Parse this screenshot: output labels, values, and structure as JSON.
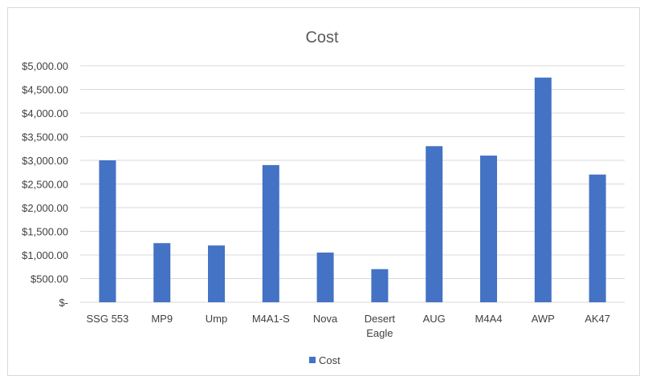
{
  "chart_data": {
    "type": "bar",
    "title": "Cost",
    "xlabel": "",
    "ylabel": "",
    "categories": [
      "SSG 553",
      "MP9",
      "Ump",
      "M4A1-S",
      "Nova",
      "Desert Eagle",
      "AUG",
      "M4A4",
      "AWP",
      "AK47"
    ],
    "category_lines": [
      [
        "SSG 553"
      ],
      [
        "MP9"
      ],
      [
        "Ump"
      ],
      [
        "M4A1-S"
      ],
      [
        "Nova"
      ],
      [
        "Desert",
        "Eagle"
      ],
      [
        "AUG"
      ],
      [
        "M4A4"
      ],
      [
        "AWP"
      ],
      [
        "AK47"
      ]
    ],
    "series": [
      {
        "name": "Cost",
        "values": [
          3000,
          1250,
          1200,
          2900,
          1050,
          700,
          3300,
          3100,
          4750,
          2700
        ],
        "color": "#4472C4"
      }
    ],
    "ylim": [
      0,
      5000
    ],
    "y_ticks": [
      0,
      500,
      1000,
      1500,
      2000,
      2500,
      3000,
      3500,
      4000,
      4500,
      5000
    ],
    "y_tick_labels": [
      "$-",
      "$500.00",
      "$1,000.00",
      "$1,500.00",
      "$2,000.00",
      "$2,500.00",
      "$3,000.00",
      "$3,500.00",
      "$4,000.00",
      "$4,500.00",
      "$5,000.00"
    ],
    "grid": true,
    "gridline_color": "#d9d9d9",
    "legend": "bottom"
  }
}
